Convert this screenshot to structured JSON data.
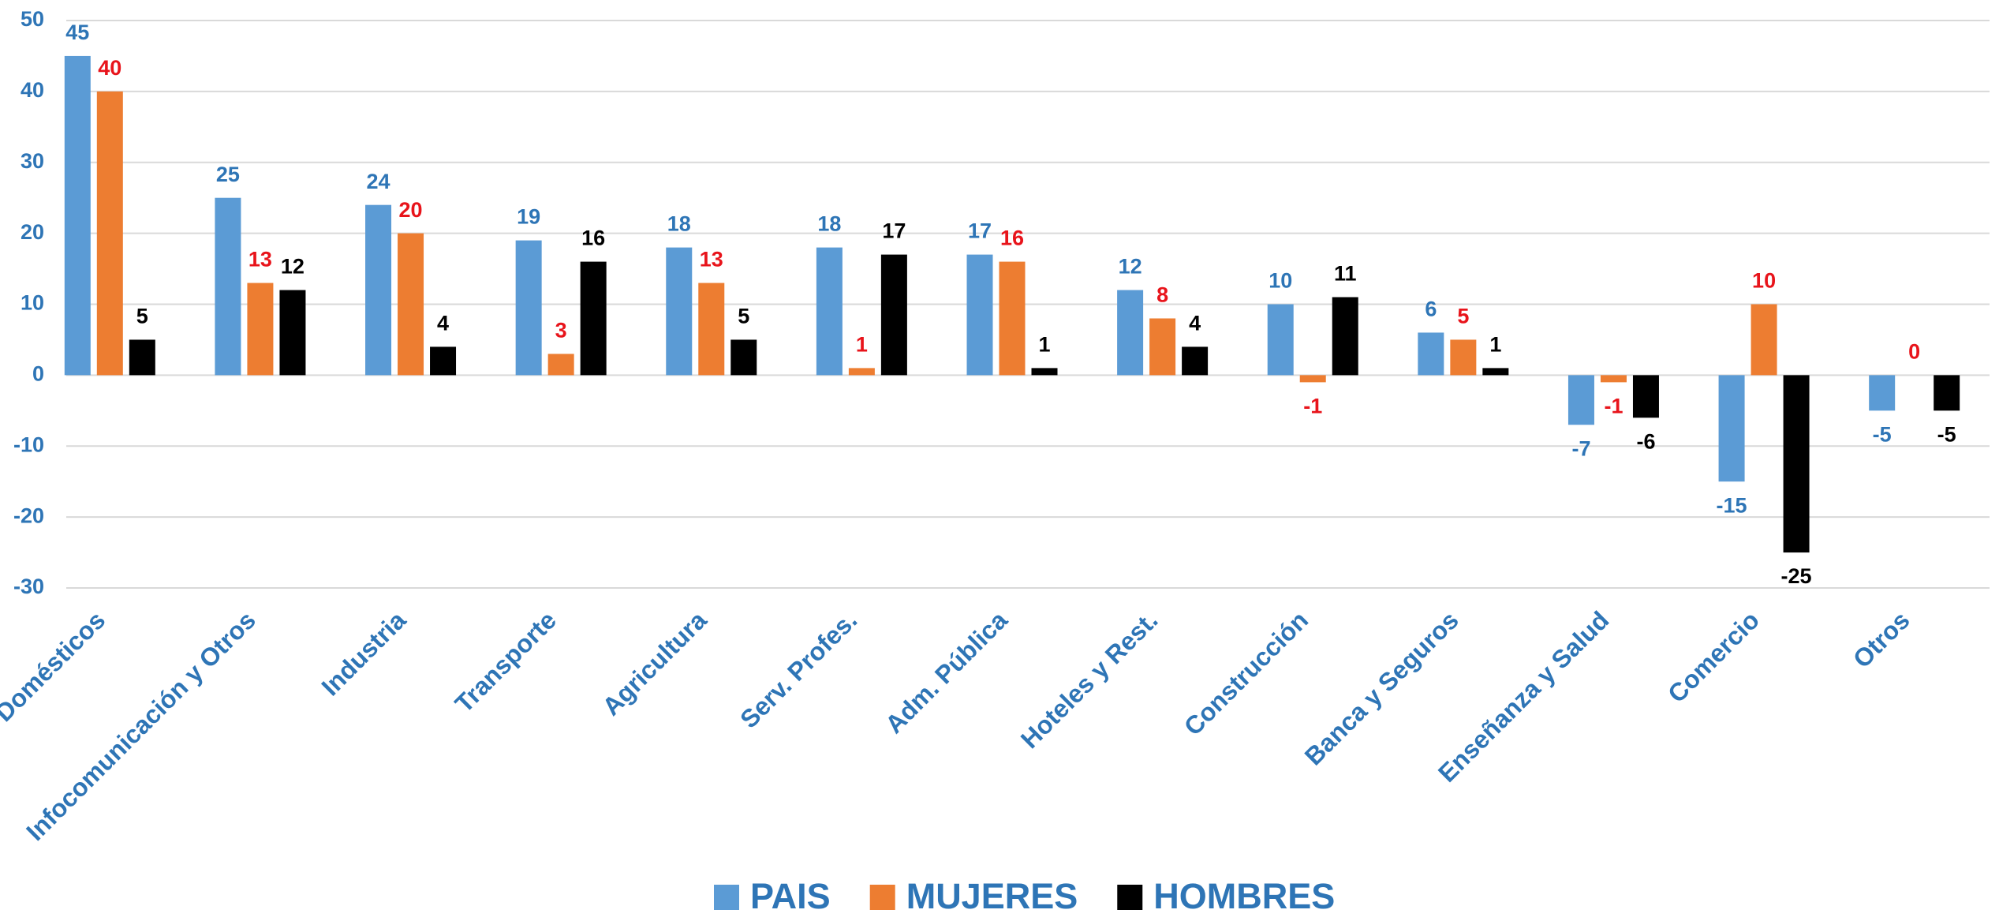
{
  "chart_data": {
    "type": "bar",
    "categories": [
      "Domésticos",
      "Infocomunicación y Otros",
      "Industria",
      "Transporte",
      "Agricultura",
      "Serv. Profes.",
      "Adm. Pública",
      "Hoteles y Rest.",
      "Construcción",
      "Banca y Seguros",
      "Enseñanza y Salud",
      "Comercio",
      "Otros"
    ],
    "series": [
      {
        "name": "PAIS",
        "color": "#5b9bd5",
        "label_color": "#2e75b6",
        "values": [
          45,
          25,
          24,
          19,
          18,
          18,
          17,
          12,
          10,
          6,
          -7,
          -15,
          -5
        ]
      },
      {
        "name": "MUJERES",
        "color": "#ed7d31",
        "label_color": "#e8141b",
        "values": [
          40,
          13,
          20,
          3,
          13,
          1,
          16,
          8,
          -1,
          5,
          -1,
          10,
          0
        ]
      },
      {
        "name": "HOMBRES",
        "color": "#000000",
        "label_color": "#000000",
        "values": [
          5,
          12,
          4,
          16,
          5,
          17,
          1,
          4,
          11,
          1,
          -6,
          -25,
          -5
        ]
      }
    ],
    "ylim": [
      -30,
      50
    ],
    "yticks": [
      -30,
      -20,
      -10,
      0,
      10,
      20,
      30,
      40,
      50
    ],
    "grid": true,
    "legend": "bottom",
    "axis_label_color": "#2e75b6"
  }
}
